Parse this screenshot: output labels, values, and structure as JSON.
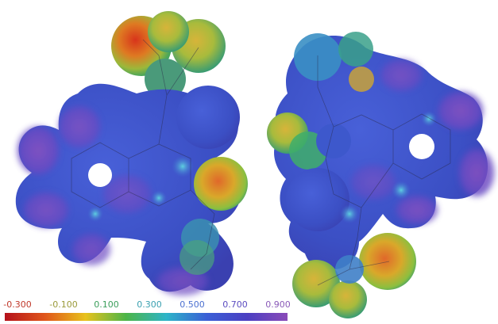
{
  "image": {
    "subject": "two-molecule-electrostatic-potential-surfaces",
    "molecules": [
      "molecule-left",
      "molecule-right"
    ]
  },
  "colorbar": {
    "ticks": [
      "-0.300",
      "-0.100",
      "0.100",
      "0.300",
      "0.500",
      "0.700",
      "0.900"
    ],
    "tick_colors": [
      "#c0392b",
      "#9a9a3a",
      "#3a9e5a",
      "#3aa0b0",
      "#4b6fd0",
      "#5a4bc0",
      "#8a5ab8"
    ],
    "gradient_stops": [
      "#b5121b",
      "#e0561a",
      "#e8c21c",
      "#4cb548",
      "#2db4c8",
      "#3a5fd6",
      "#4b3fc2",
      "#8a4bb8"
    ]
  },
  "palette": {
    "negative": "#d83a1e",
    "neutral": "#43b64a",
    "positive": "#3f56d3",
    "most_positive": "#8a4bb8"
  }
}
